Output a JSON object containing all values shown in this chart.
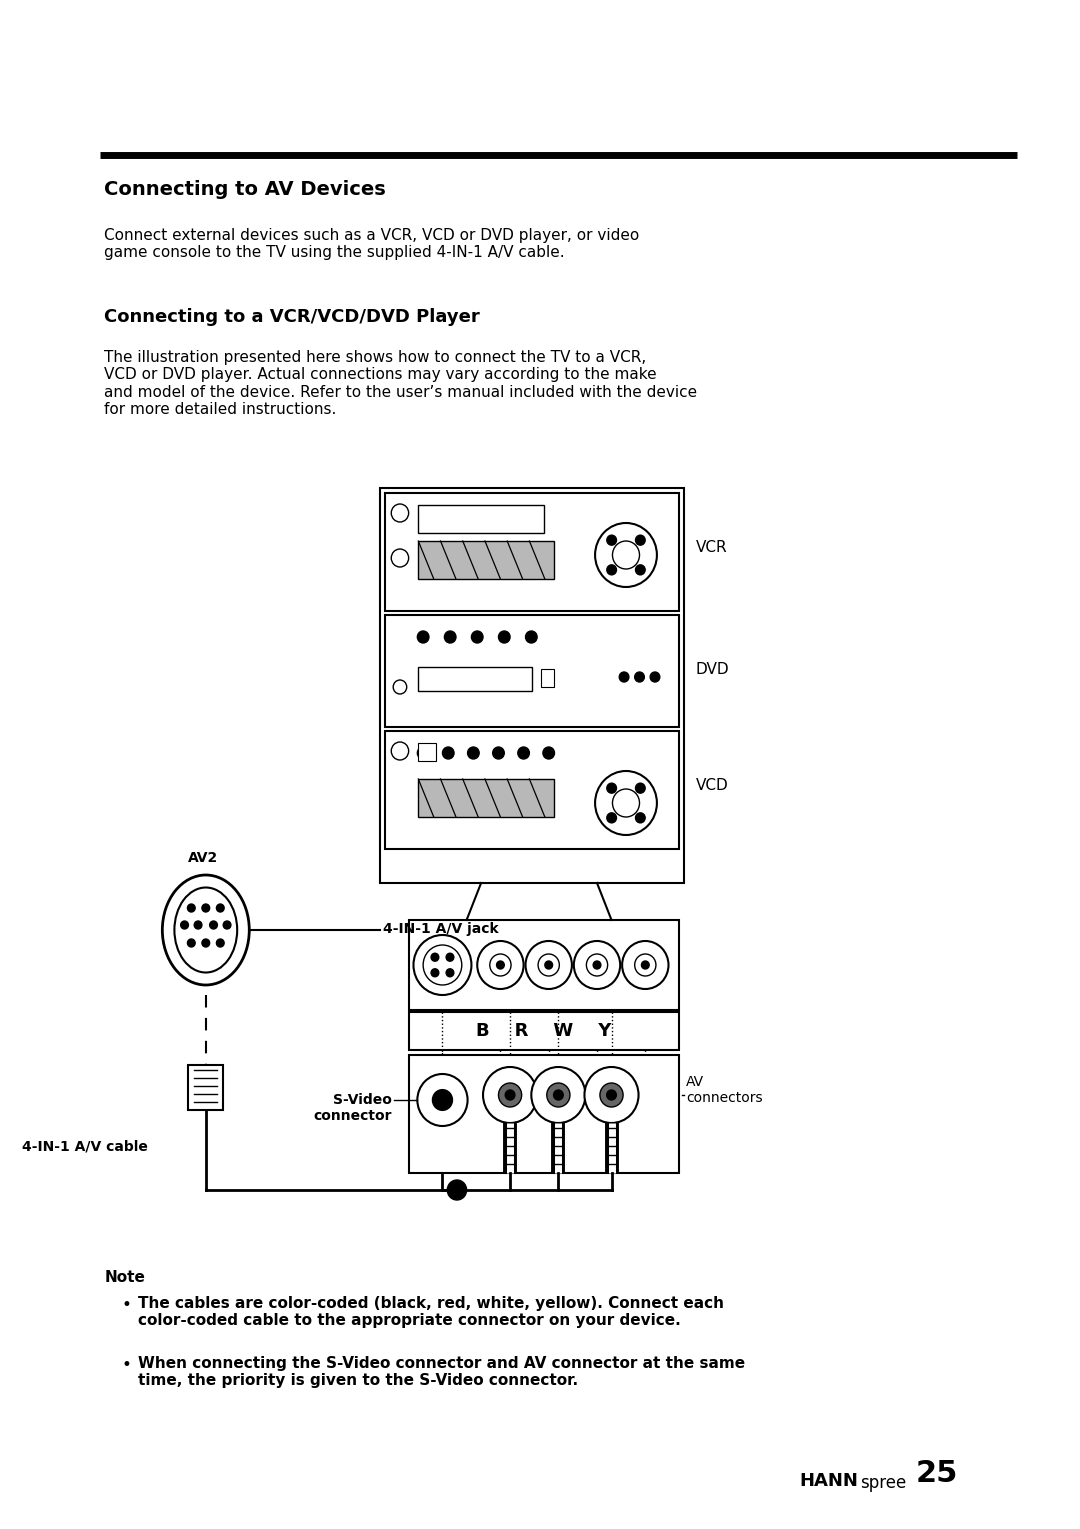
{
  "bg_color": "#ffffff",
  "title_section": "Connecting to AV Devices",
  "section2_title": "Connecting to a VCR/VCD/DVD Player",
  "body_text1": "Connect external devices such as a VCR, VCD or DVD player, or video\ngame console to the TV using the supplied 4-IN-1 A/V cable.",
  "body_text2": "The illustration presented here shows how to connect the TV to a VCR,\nVCD or DVD player. Actual connections may vary according to the make\nand model of the device. Refer to the user’s manual included with the device\nfor more detailed instructions.",
  "label_vcr": "VCR",
  "label_dvd": "DVD",
  "label_vcd": "VCD",
  "label_av2": "AV2",
  "label_4in1jack": "4-IN-1 A/V jack",
  "label_svideo": "S-Video\nconnector",
  "label_av_connectors": "AV\nconnectors",
  "label_4in1cable": "4-IN-1 A/V cable",
  "label_brwy": "B    R    W    Y",
  "note_title": "Note",
  "note_bullet1": "The cables are color-coded (black, red, white, yellow). Connect each\ncolor-coded cable to the appropriate connector on your device.",
  "note_bullet2": "When connecting the S-Video connector and AV connector at the same\ntime, the priority is given to the S-Video connector.",
  "footer_brand": "HANN",
  "footer_spree": "spree",
  "footer_page": "25"
}
